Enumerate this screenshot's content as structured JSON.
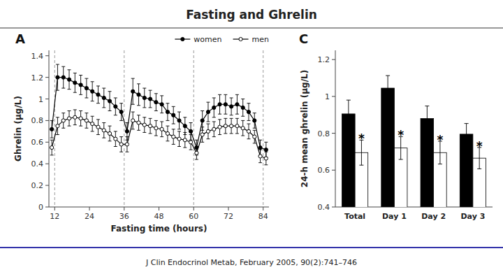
{
  "title": "Fasting and Ghrelin",
  "source": "J Clin Endocrinol Metab, February 2005, 90(2):741–746",
  "chart_data": [
    {
      "type": "line",
      "title": "A",
      "xlabel": "Fasting time (hours)",
      "ylabel": "Ghrelin (µg/L)",
      "xlim": [
        10,
        86
      ],
      "ylim": [
        0.0,
        1.45
      ],
      "xticks": [
        12,
        24,
        36,
        48,
        60,
        72,
        84
      ],
      "yticks": [
        0.0,
        0.2,
        0.4,
        0.6,
        0.8,
        1.0,
        1.2,
        1.4
      ],
      "vlines": [
        12,
        36,
        60,
        84
      ],
      "grid": false,
      "legend": "upper right",
      "x": [
        11,
        13,
        15,
        17,
        19,
        21,
        23,
        25,
        27,
        29,
        31,
        33,
        35,
        37,
        39,
        41,
        43,
        45,
        47,
        49,
        51,
        53,
        55,
        57,
        59,
        61,
        63,
        65,
        67,
        69,
        71,
        73,
        75,
        77,
        79,
        81,
        83,
        85
      ],
      "series": [
        {
          "name": "women",
          "color": "#000000",
          "marker": "circle",
          "line_style": "solid",
          "values": [
            0.72,
            1.2,
            1.2,
            1.18,
            1.15,
            1.13,
            1.1,
            1.07,
            1.04,
            1.01,
            0.98,
            0.93,
            0.88,
            0.7,
            1.07,
            1.04,
            1.01,
            1.0,
            0.97,
            0.95,
            0.88,
            0.85,
            0.8,
            0.75,
            0.7,
            0.55,
            0.8,
            0.88,
            0.92,
            0.95,
            0.95,
            0.93,
            0.95,
            0.92,
            0.88,
            0.8,
            0.55,
            0.53
          ],
          "errors": [
            0.08,
            0.12,
            0.1,
            0.09,
            0.09,
            0.09,
            0.09,
            0.09,
            0.08,
            0.09,
            0.09,
            0.08,
            0.08,
            0.08,
            0.12,
            0.1,
            0.09,
            0.08,
            0.08,
            0.08,
            0.08,
            0.08,
            0.08,
            0.08,
            0.08,
            0.07,
            0.09,
            0.09,
            0.09,
            0.09,
            0.09,
            0.08,
            0.09,
            0.08,
            0.08,
            0.07,
            0.07,
            0.07
          ]
        },
        {
          "name": "men",
          "color": "#000000",
          "marker": "circle-open",
          "line_style": "solid",
          "values": [
            0.55,
            0.75,
            0.8,
            0.82,
            0.83,
            0.82,
            0.8,
            0.77,
            0.74,
            0.71,
            0.68,
            0.63,
            0.58,
            0.58,
            0.8,
            0.78,
            0.76,
            0.75,
            0.73,
            0.72,
            0.68,
            0.65,
            0.63,
            0.62,
            0.6,
            0.5,
            0.67,
            0.7,
            0.72,
            0.74,
            0.75,
            0.75,
            0.75,
            0.73,
            0.7,
            0.65,
            0.47,
            0.45
          ],
          "errors": [
            0.07,
            0.08,
            0.07,
            0.07,
            0.07,
            0.07,
            0.07,
            0.07,
            0.07,
            0.07,
            0.07,
            0.07,
            0.07,
            0.07,
            0.08,
            0.07,
            0.07,
            0.07,
            0.07,
            0.07,
            0.07,
            0.07,
            0.07,
            0.07,
            0.07,
            0.06,
            0.07,
            0.07,
            0.07,
            0.07,
            0.07,
            0.07,
            0.07,
            0.07,
            0.07,
            0.06,
            0.06,
            0.06
          ]
        }
      ]
    },
    {
      "type": "bar",
      "title": "C",
      "ylabel": "24-h mean ghrelin (µg/L)",
      "ylim": [
        0.4,
        1.25
      ],
      "yticks": [
        0.4,
        0.6,
        0.8,
        1.0,
        1.2
      ],
      "grid": false,
      "categories": [
        "Total",
        "Day 1",
        "Day 2",
        "Day 3"
      ],
      "series": [
        {
          "name": "women",
          "color": "#000000",
          "values": [
            0.905,
            1.045,
            0.88,
            0.795
          ],
          "errors": [
            0.075,
            0.068,
            0.068,
            0.058
          ]
        },
        {
          "name": "men",
          "color": "#ffffff",
          "values": [
            0.695,
            0.72,
            0.695,
            0.665
          ],
          "errors": [
            0.068,
            0.062,
            0.062,
            0.058
          ]
        }
      ],
      "annotations": [
        {
          "text": "*",
          "x": "Total",
          "series": "men"
        },
        {
          "text": "*",
          "x": "Day 1",
          "series": "men"
        },
        {
          "text": "*",
          "x": "Day 2",
          "series": "men"
        },
        {
          "text": "*",
          "x": "Day 3",
          "series": "men"
        }
      ]
    }
  ]
}
